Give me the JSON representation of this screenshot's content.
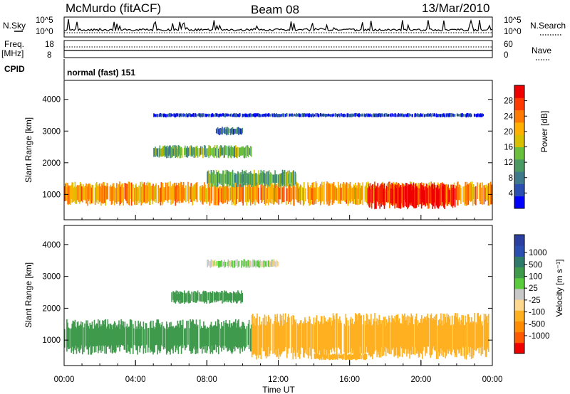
{
  "header": {
    "station": "McMurdo (fitACF)",
    "beam": "Beam 08",
    "date": "13/Mar/2010"
  },
  "top_panel": {
    "left_label": "N.Sky",
    "right_label": "N.Search",
    "left_ticks": [
      "10^5",
      "10^0"
    ],
    "right_ticks": [
      "10^5",
      "10^0"
    ]
  },
  "freq_panel": {
    "left_label_line1": "Freq.",
    "left_label_line2": "[MHz]",
    "right_label": "Nave",
    "left_ticks": [
      "18",
      "8"
    ],
    "right_ticks": [
      "60",
      "0"
    ]
  },
  "cpid": {
    "label": "CPID",
    "value": "normal (fast) 151"
  },
  "colors": {
    "power": [
      "#0000ff",
      "#2a4fb0",
      "#3f7a8c",
      "#4c9a63",
      "#6abf3c",
      "#d8c000",
      "#ffb000",
      "#ff7a00",
      "#ff3a00",
      "#ee0000"
    ],
    "velocity": [
      "#ee0000",
      "#ff5a00",
      "#ff8c00",
      "#ffb020",
      "#ffd890",
      "#c8c8c8",
      "#5acb3c",
      "#3f9a4c",
      "#2f7a6a",
      "#2a4fb0",
      "#2a3fa0"
    ]
  },
  "chart_data": [
    {
      "type": "heatmap",
      "ylabel": "Slant Range [km]",
      "xlabel": "",
      "x_range": [
        0,
        24
      ],
      "y_range": [
        200,
        4600
      ],
      "y_ticks": [
        "1000",
        "2000",
        "3000",
        "4000"
      ],
      "y_tick_values": [
        1000,
        2000,
        3000,
        4000
      ],
      "colorbar_label": "Power [dB]",
      "colorbar_ticks": [
        "4",
        "8",
        "12",
        "16",
        "20",
        "24",
        "28"
      ],
      "colorbar_values": [
        4,
        8,
        12,
        16,
        20,
        24,
        28
      ],
      "colorbar_range": [
        0,
        32
      ],
      "bands": [
        {
          "start_h": 0.0,
          "end_h": 24.0,
          "low_km": 750,
          "high_km": 1300,
          "value": 22
        },
        {
          "start_h": 17.0,
          "end_h": 22.0,
          "low_km": 650,
          "high_km": 1250,
          "value": 29
        },
        {
          "start_h": 8.0,
          "end_h": 13.0,
          "low_km": 1300,
          "high_km": 1700,
          "value": 12
        },
        {
          "start_h": 5.0,
          "end_h": 10.5,
          "low_km": 2200,
          "high_km": 2500,
          "value": 12
        },
        {
          "start_h": 8.5,
          "end_h": 10.0,
          "low_km": 2900,
          "high_km": 3100,
          "value": 8
        },
        {
          "start_h": 5.0,
          "end_h": 23.5,
          "low_km": 3450,
          "high_km": 3550,
          "value": 4
        }
      ]
    },
    {
      "type": "heatmap",
      "ylabel": "Slant Range [km]",
      "xlabel": "Time UT",
      "x_range": [
        0,
        24
      ],
      "x_ticks": [
        "00:00",
        "04:00",
        "08:00",
        "12:00",
        "16:00",
        "20:00",
        "00:00"
      ],
      "x_tick_values": [
        0,
        4,
        8,
        12,
        16,
        20,
        24
      ],
      "y_range": [
        200,
        4600
      ],
      "y_ticks": [
        "1000",
        "2000",
        "3000",
        "4000"
      ],
      "y_tick_values": [
        1000,
        2000,
        3000,
        4000
      ],
      "colorbar_label": "Velocity [m s⁻¹]",
      "colorbar_ticks": [
        "-1000",
        "-500",
        "-100",
        "-25",
        "25",
        "100",
        "500",
        "1000"
      ],
      "colorbar_values": [
        -1000,
        -500,
        -100,
        -25,
        25,
        100,
        500,
        1000
      ],
      "bands": [
        {
          "start_h": 0.0,
          "end_h": 10.5,
          "low_km": 700,
          "high_km": 1500,
          "value": 300
        },
        {
          "start_h": 10.5,
          "end_h": 23.8,
          "low_km": 600,
          "high_km": 1650,
          "value": -200
        },
        {
          "start_h": 6.0,
          "end_h": 10.0,
          "low_km": 2200,
          "high_km": 2500,
          "value": 300
        },
        {
          "start_h": 14.0,
          "end_h": 17.0,
          "low_km": 400,
          "high_km": 550,
          "value": -200
        },
        {
          "start_h": 8.0,
          "end_h": 12.0,
          "low_km": 3300,
          "high_km": 3500,
          "value": 20
        }
      ]
    }
  ]
}
